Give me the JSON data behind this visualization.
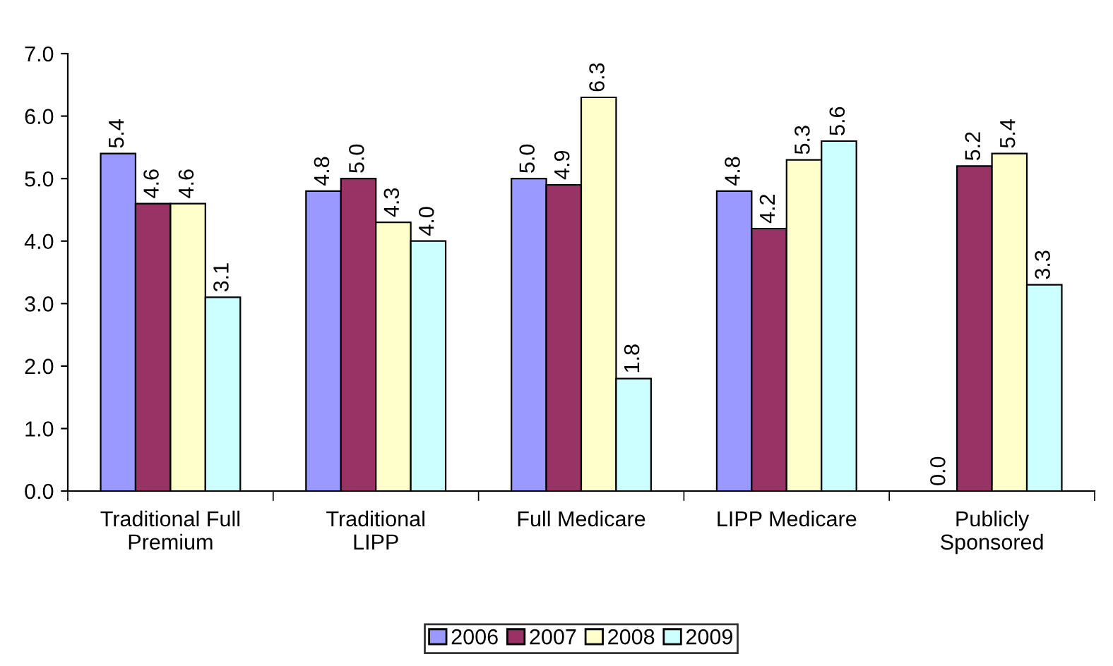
{
  "chart_data": {
    "type": "bar",
    "categories": [
      "Traditional Full\nPremium",
      "Traditional\nLIPP",
      "Full Medicare",
      "LIPP Medicare",
      "Publicly\nSponsored"
    ],
    "series": [
      {
        "name": "2006",
        "color": "#9999ff",
        "values": [
          5.4,
          4.8,
          5.0,
          4.8,
          0.0
        ],
        "value_labels": [
          "5.4",
          "4.8",
          "5.0",
          "4.8",
          "0.0"
        ]
      },
      {
        "name": "2007",
        "color": "#993366",
        "values": [
          4.6,
          5.0,
          4.9,
          4.2,
          5.2
        ],
        "value_labels": [
          "4.6",
          "5.0",
          "4.9",
          "4.2",
          "5.2"
        ]
      },
      {
        "name": "2008",
        "color": "#ffffcc",
        "values": [
          4.6,
          4.3,
          6.3,
          5.3,
          5.4
        ],
        "value_labels": [
          "4.6",
          "4.3",
          "6.3",
          "5.3",
          "5.4"
        ]
      },
      {
        "name": "2009",
        "color": "#ccffff",
        "values": [
          3.1,
          4.0,
          1.8,
          5.6,
          3.3
        ],
        "value_labels": [
          "3.1",
          "4.0",
          "1.8",
          "5.6",
          "3.3"
        ]
      }
    ],
    "ylim": [
      0,
      7
    ],
    "yticks": [
      {
        "value": 0,
        "label": "0.0"
      },
      {
        "value": 1,
        "label": "1.0"
      },
      {
        "value": 2,
        "label": "2.0"
      },
      {
        "value": 3,
        "label": "3.0"
      },
      {
        "value": 4,
        "label": "4.0"
      },
      {
        "value": 5,
        "label": "5.0"
      },
      {
        "value": 6,
        "label": "6.0"
      },
      {
        "value": 7,
        "label": "7.0"
      }
    ],
    "grid": false,
    "legend": "bottom"
  }
}
